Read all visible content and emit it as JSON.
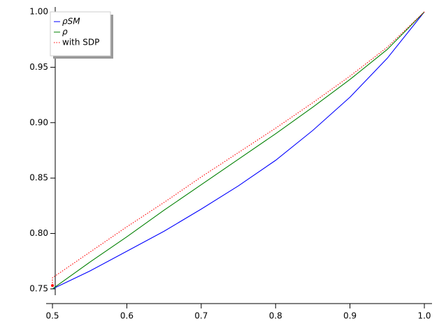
{
  "chart_data": {
    "type": "line",
    "series": [
      {
        "name": "ρSM",
        "color": "#0000ff",
        "style": "solid",
        "x": [
          0.5,
          0.55,
          0.6,
          0.65,
          0.7,
          0.75,
          0.8,
          0.85,
          0.9,
          0.95,
          1
        ],
        "values": [
          0.75,
          0.766,
          0.784,
          0.802,
          0.822,
          0.843,
          0.866,
          0.893,
          0.923,
          0.958,
          1
        ]
      },
      {
        "name": "ρ",
        "color": "#008000",
        "style": "solid",
        "x": [
          0.5,
          0.55,
          0.6,
          0.65,
          0.7,
          0.75,
          0.8,
          0.85,
          0.9,
          0.95,
          1
        ],
        "values": [
          0.75,
          0.774,
          0.797,
          0.821,
          0.844,
          0.867,
          0.89,
          0.914,
          0.939,
          0.966,
          1
        ]
      },
      {
        "name": "with SDP",
        "color": "#ff0000",
        "style": "dotted",
        "x": [
          0.5,
          0.5,
          0.55,
          0.6,
          0.65,
          0.7,
          0.75,
          0.8,
          0.85,
          0.9,
          0.95,
          1
        ],
        "values": [
          0.753,
          0.76,
          0.783,
          0.806,
          0.828,
          0.851,
          0.873,
          0.895,
          0.918,
          0.942,
          0.968,
          1
        ]
      }
    ],
    "xlim": [
      0.4915,
      1.0103
    ],
    "ylim": [
      0.7443,
      1.0044
    ],
    "xticks": [
      0.5,
      0.6,
      0.7,
      0.8,
      0.9,
      {
        "value": 1,
        "label": "1.0"
      }
    ],
    "yticks": [
      0.75,
      {
        "value": 0.8,
        "label": "0.80"
      },
      0.85,
      {
        "value": 0.9,
        "label": "0.90"
      },
      0.95,
      {
        "value": 1,
        "label": "1.00"
      }
    ],
    "legend": "upper-left"
  }
}
